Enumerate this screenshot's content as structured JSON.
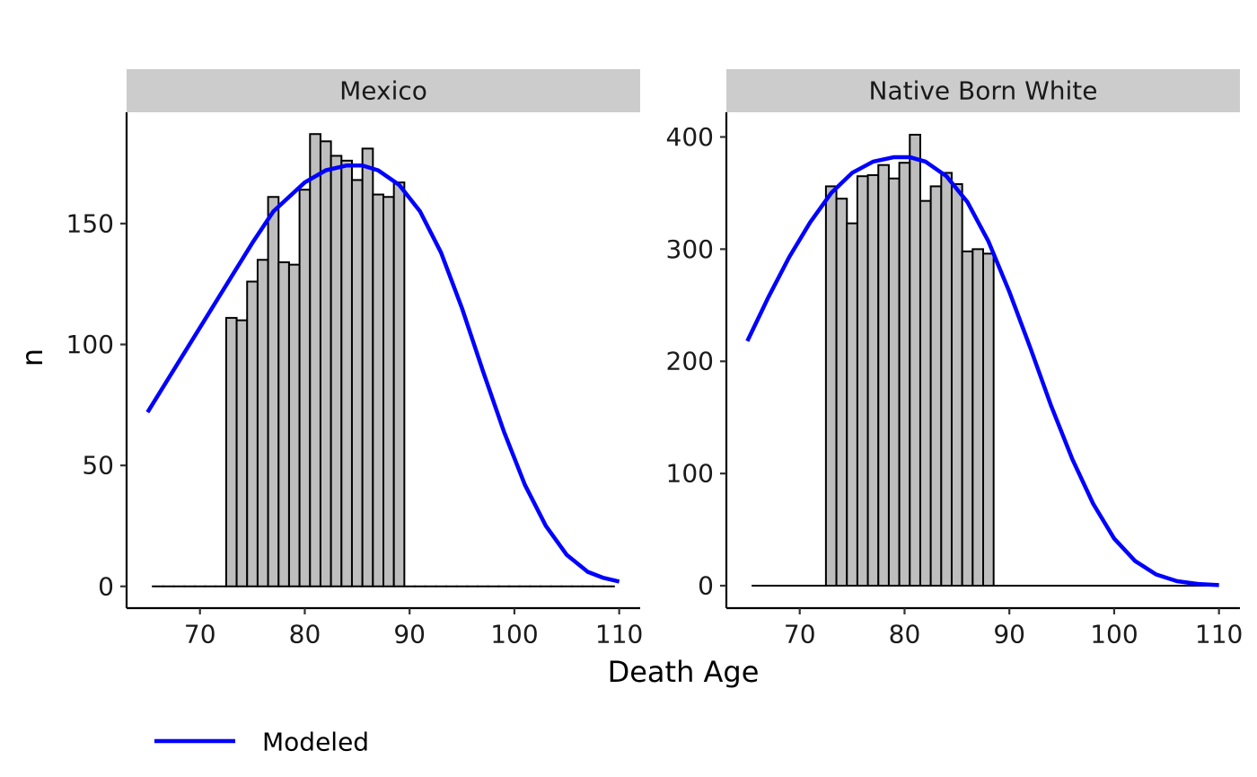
{
  "chart_data": {
    "type": "bar",
    "xlabel": "Death Age",
    "ylabel": "n",
    "legend": {
      "placement": "bottom-left",
      "entries": [
        {
          "name": "Modeled",
          "color": "#0000FF"
        }
      ]
    },
    "bar_fill": "#BEBEBE",
    "bar_stroke": "#000000",
    "strip_fill": "#CCCCCC",
    "xlim": [
      63,
      112
    ],
    "xticks": [
      70,
      80,
      90,
      100,
      110
    ],
    "panels": [
      {
        "title": "Mexico",
        "ylim": [
          -9,
          196
        ],
        "yticks": [
          0,
          50,
          100,
          150
        ],
        "bars": {
          "x": [
            66,
            67,
            68,
            69,
            70,
            71,
            72,
            73,
            74,
            75,
            76,
            77,
            78,
            79,
            80,
            81,
            82,
            83,
            84,
            85,
            86,
            87,
            88,
            89,
            90,
            91,
            92,
            93,
            94,
            95,
            96,
            97,
            98,
            99,
            100,
            101,
            102,
            103,
            104,
            105,
            106,
            107,
            108,
            109
          ],
          "values": [
            0,
            0,
            0,
            0,
            0,
            0,
            0,
            111,
            110,
            126,
            135,
            161,
            134,
            133,
            164,
            187,
            184,
            178,
            176,
            168,
            181,
            162,
            161,
            167,
            0,
            0,
            0,
            0,
            0,
            0,
            0,
            0,
            0,
            0,
            0,
            0,
            0,
            0,
            0,
            0,
            0,
            0,
            0,
            0
          ]
        },
        "modeled": {
          "x": [
            65,
            67,
            70,
            73,
            75,
            77,
            80,
            82,
            84,
            85.5,
            87,
            89,
            91,
            93,
            95,
            97,
            99,
            101,
            103,
            105,
            107,
            108.5,
            110
          ],
          "y": [
            72,
            86,
            107,
            128,
            142,
            155,
            167,
            172,
            174,
            174,
            172,
            166,
            155,
            138,
            115,
            89,
            64,
            42,
            25,
            13,
            6,
            3.5,
            2
          ]
        }
      },
      {
        "title": "Native Born White",
        "ylim": [
          -20,
          422
        ],
        "yticks": [
          0,
          100,
          200,
          300,
          400
        ],
        "bars": {
          "x": [
            66,
            67,
            68,
            69,
            70,
            71,
            72,
            73,
            74,
            75,
            76,
            77,
            78,
            79,
            80,
            81,
            82,
            83,
            84,
            85,
            86,
            87,
            88,
            89,
            90,
            91,
            92,
            93,
            94,
            95,
            96,
            97,
            98,
            99,
            100,
            101,
            102,
            103,
            104,
            105,
            106,
            107,
            108,
            109
          ],
          "values": [
            0,
            0,
            0,
            0,
            0,
            0,
            0,
            356,
            345,
            323,
            365,
            366,
            375,
            363,
            377,
            402,
            343,
            356,
            368,
            358,
            298,
            300,
            296,
            0,
            0,
            0,
            0,
            0,
            0,
            0,
            0,
            0,
            0,
            0,
            0,
            0,
            0,
            0,
            0,
            0,
            0,
            0,
            0,
            0
          ]
        },
        "modeled": {
          "x": [
            65,
            67,
            69,
            71,
            73,
            75,
            77,
            79,
            80.5,
            82,
            84,
            86,
            88,
            90,
            92,
            94,
            96,
            98,
            100,
            102,
            104,
            106,
            108,
            110
          ],
          "y": [
            218,
            257,
            293,
            324,
            350,
            368,
            378,
            382,
            382,
            378,
            365,
            342,
            307,
            262,
            212,
            160,
            113,
            73,
            42,
            22,
            10,
            4,
            1.5,
            0.5
          ]
        }
      }
    ]
  }
}
